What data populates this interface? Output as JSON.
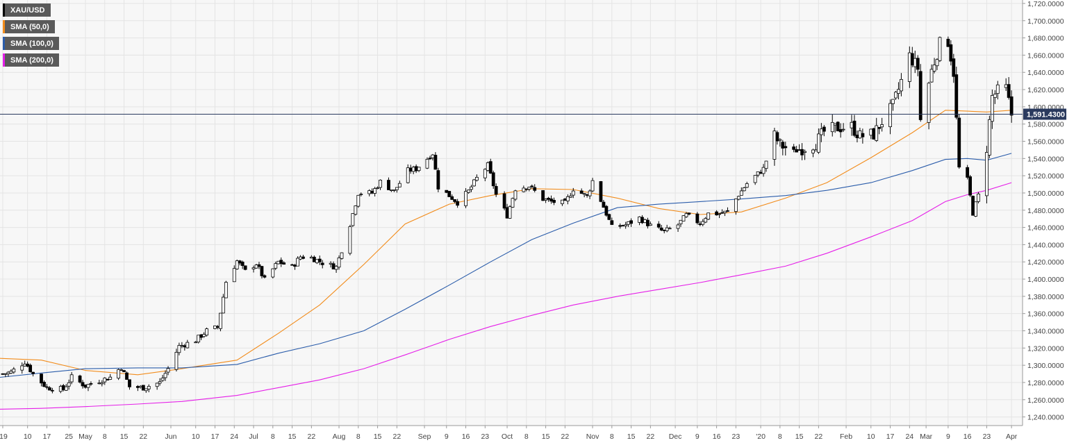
{
  "symbol": "XAU/USD",
  "colors": {
    "background": "#ffffff",
    "plot_background": "#f7f7f7",
    "grid": "#e4e4e4",
    "axis_text": "#444444",
    "candle_up": "#ffffff",
    "candle_down": "#000000",
    "candle_outline": "#000000",
    "current_price_line": "#2a3a5e",
    "legend_bg": "#5a5a5a",
    "legend_text": "#ffffff"
  },
  "legend": [
    {
      "label": "XAU/USD",
      "color": "#000000"
    },
    {
      "label": "SMA (50,0)",
      "color": "#f28c1b"
    },
    {
      "label": "SMA (100,0)",
      "color": "#2a5caa"
    },
    {
      "label": "SMA (200,0)",
      "color": "#e51ee8"
    }
  ],
  "current_price": {
    "label": "1,591.4300",
    "value": 1591.43
  },
  "chart_data": {
    "type": "candlestick",
    "title": "",
    "xlabel": "",
    "ylabel": "",
    "ylim": [
      1230,
      1724
    ],
    "y_ticks": [
      "1,240.0000",
      "1,260.0000",
      "1,280.0000",
      "1,300.0000",
      "1,320.0000",
      "1,340.0000",
      "1,360.0000",
      "1,380.0000",
      "1,400.0000",
      "1,420.0000",
      "1,440.0000",
      "1,460.0000",
      "1,480.0000",
      "1,500.0000",
      "1,520.0000",
      "1,540.0000",
      "1,560.0000",
      "1,580.0000",
      "1,600.0000",
      "1,620.0000",
      "1,640.0000",
      "1,660.0000",
      "1,680.0000",
      "1,700.0000",
      "1,720.0000"
    ],
    "y_tick_values": [
      1240,
      1260,
      1280,
      1300,
      1320,
      1340,
      1360,
      1380,
      1400,
      1420,
      1440,
      1460,
      1480,
      1500,
      1520,
      1540,
      1560,
      1580,
      1600,
      1620,
      1640,
      1660,
      1680,
      1700,
      1720
    ],
    "x_tick_labels": [
      "'19",
      "10",
      "17",
      "25",
      "May",
      "8",
      "15",
      "22",
      "Jun",
      "10",
      "17",
      "24",
      "Jul",
      "8",
      "15",
      "22",
      "Aug",
      "8",
      "15",
      "22",
      "Sep",
      "9",
      "16",
      "23",
      "Oct",
      "8",
      "15",
      "22",
      "Nov",
      "8",
      "15",
      "22",
      "Dec",
      "9",
      "16",
      "23",
      "'20",
      "8",
      "15",
      "22",
      "Feb",
      "10",
      "17",
      "24",
      "Mar",
      "9",
      "16",
      "23",
      "Apr"
    ],
    "x_tick_dates": [
      "2019-04-01",
      "2019-04-10",
      "2019-04-17",
      "2019-04-25",
      "2019-05-01",
      "2019-05-08",
      "2019-05-15",
      "2019-05-22",
      "2019-06-01",
      "2019-06-10",
      "2019-06-17",
      "2019-06-24",
      "2019-07-01",
      "2019-07-08",
      "2019-07-15",
      "2019-07-22",
      "2019-08-01",
      "2019-08-08",
      "2019-08-15",
      "2019-08-22",
      "2019-09-01",
      "2019-09-09",
      "2019-09-16",
      "2019-09-23",
      "2019-10-01",
      "2019-10-08",
      "2019-10-15",
      "2019-10-22",
      "2019-11-01",
      "2019-11-08",
      "2019-11-15",
      "2019-11-22",
      "2019-12-01",
      "2019-12-09",
      "2019-12-16",
      "2019-12-23",
      "2020-01-01",
      "2020-01-08",
      "2020-01-15",
      "2020-01-22",
      "2020-02-01",
      "2020-02-10",
      "2020-02-17",
      "2020-02-24",
      "2020-03-01",
      "2020-03-09",
      "2020-03-16",
      "2020-03-23",
      "2020-04-01"
    ],
    "x_range": [
      "2019-03-31",
      "2020-04-05"
    ],
    "grid": true,
    "legend_position": "top-left",
    "series": [
      {
        "name": "XAU/USD",
        "type": "candlestick",
        "color": "#000000",
        "close_path": [
          [
            "2019-04-01",
            1290
          ],
          [
            "2019-04-04",
            1292
          ],
          [
            "2019-04-09",
            1304
          ],
          [
            "2019-04-12",
            1290
          ],
          [
            "2019-04-17",
            1274
          ],
          [
            "2019-04-23",
            1272
          ],
          [
            "2019-04-26",
            1286
          ],
          [
            "2019-05-01",
            1276
          ],
          [
            "2019-05-06",
            1282
          ],
          [
            "2019-05-10",
            1286
          ],
          [
            "2019-05-14",
            1298
          ],
          [
            "2019-05-17",
            1275
          ],
          [
            "2019-05-22",
            1274
          ],
          [
            "2019-05-28",
            1280
          ],
          [
            "2019-05-31",
            1296
          ],
          [
            "2019-06-04",
            1322
          ],
          [
            "2019-06-10",
            1329
          ],
          [
            "2019-06-14",
            1340
          ],
          [
            "2019-06-18",
            1344
          ],
          [
            "2019-06-21",
            1397
          ],
          [
            "2019-06-25",
            1421
          ],
          [
            "2019-06-28",
            1409
          ],
          [
            "2019-07-02",
            1418
          ],
          [
            "2019-07-05",
            1399
          ],
          [
            "2019-07-10",
            1420
          ],
          [
            "2019-07-15",
            1414
          ],
          [
            "2019-07-18",
            1426
          ],
          [
            "2019-07-22",
            1425
          ],
          [
            "2019-07-26",
            1419
          ],
          [
            "2019-07-31",
            1414
          ],
          [
            "2019-08-05",
            1464
          ],
          [
            "2019-08-08",
            1500
          ],
          [
            "2019-08-13",
            1500
          ],
          [
            "2019-08-16",
            1513
          ],
          [
            "2019-08-21",
            1502
          ],
          [
            "2019-08-26",
            1526
          ],
          [
            "2019-08-29",
            1528
          ],
          [
            "2019-09-04",
            1546
          ],
          [
            "2019-09-06",
            1507
          ],
          [
            "2019-09-10",
            1497
          ],
          [
            "2019-09-13",
            1489
          ],
          [
            "2019-09-17",
            1502
          ],
          [
            "2019-09-20",
            1517
          ],
          [
            "2019-09-24",
            1532
          ],
          [
            "2019-09-27",
            1498
          ],
          [
            "2019-10-01",
            1474
          ],
          [
            "2019-10-04",
            1505
          ],
          [
            "2019-10-09",
            1508
          ],
          [
            "2019-10-14",
            1493
          ],
          [
            "2019-10-17",
            1490
          ],
          [
            "2019-10-22",
            1488
          ],
          [
            "2019-10-25",
            1505
          ],
          [
            "2019-10-30",
            1496
          ],
          [
            "2019-11-01",
            1514
          ],
          [
            "2019-11-05",
            1484
          ],
          [
            "2019-11-08",
            1460
          ],
          [
            "2019-11-13",
            1463
          ],
          [
            "2019-11-18",
            1471
          ],
          [
            "2019-11-22",
            1462
          ],
          [
            "2019-11-27",
            1455
          ],
          [
            "2019-12-02",
            1463
          ],
          [
            "2019-12-05",
            1474
          ],
          [
            "2019-12-10",
            1465
          ],
          [
            "2019-12-13",
            1476
          ],
          [
            "2019-12-17",
            1476
          ],
          [
            "2019-12-20",
            1478
          ],
          [
            "2019-12-24",
            1498
          ],
          [
            "2019-12-27",
            1511
          ],
          [
            "2020-01-02",
            1528
          ],
          [
            "2020-01-06",
            1566
          ],
          [
            "2020-01-08",
            1556
          ],
          [
            "2020-01-13",
            1548
          ],
          [
            "2020-01-16",
            1552
          ],
          [
            "2020-01-21",
            1558
          ],
          [
            "2020-01-24",
            1571
          ],
          [
            "2020-01-29",
            1576
          ],
          [
            "2020-02-03",
            1577
          ],
          [
            "2020-02-06",
            1566
          ],
          [
            "2020-02-11",
            1568
          ],
          [
            "2020-02-14",
            1583
          ],
          [
            "2020-02-18",
            1601
          ],
          [
            "2020-02-20",
            1620
          ],
          [
            "2020-02-24",
            1659
          ],
          [
            "2020-02-27",
            1645
          ],
          [
            "2020-02-28",
            1585
          ],
          [
            "2020-03-03",
            1642
          ],
          [
            "2020-03-06",
            1673
          ],
          [
            "2020-03-09",
            1676
          ],
          [
            "2020-03-11",
            1640
          ],
          [
            "2020-03-13",
            1529
          ],
          [
            "2020-03-16",
            1515
          ],
          [
            "2020-03-18",
            1477
          ],
          [
            "2020-03-20",
            1497
          ],
          [
            "2020-03-23",
            1553
          ],
          [
            "2020-03-25",
            1612
          ],
          [
            "2020-03-27",
            1618
          ],
          [
            "2020-03-30",
            1621
          ],
          [
            "2020-04-01",
            1591
          ]
        ]
      },
      {
        "name": "SMA (50,0)",
        "type": "line",
        "color": "#f28c1b",
        "points": [
          [
            "2019-03-31",
            1308
          ],
          [
            "2019-04-15",
            1306
          ],
          [
            "2019-05-01",
            1294
          ],
          [
            "2019-05-20",
            1289
          ],
          [
            "2019-06-05",
            1296
          ],
          [
            "2019-06-25",
            1306
          ],
          [
            "2019-07-10",
            1337
          ],
          [
            "2019-07-25",
            1370
          ],
          [
            "2019-08-10",
            1417
          ],
          [
            "2019-08-25",
            1464
          ],
          [
            "2019-09-10",
            1487
          ],
          [
            "2019-09-25",
            1497
          ],
          [
            "2019-10-10",
            1505
          ],
          [
            "2019-10-25",
            1504
          ],
          [
            "2019-11-10",
            1494
          ],
          [
            "2019-11-25",
            1482
          ],
          [
            "2019-12-10",
            1475
          ],
          [
            "2019-12-25",
            1478
          ],
          [
            "2020-01-10",
            1494
          ],
          [
            "2020-01-25",
            1512
          ],
          [
            "2020-02-10",
            1541
          ],
          [
            "2020-02-25",
            1570
          ],
          [
            "2020-03-08",
            1596
          ],
          [
            "2020-03-16",
            1595
          ],
          [
            "2020-03-23",
            1594
          ],
          [
            "2020-04-01",
            1596
          ]
        ]
      },
      {
        "name": "SMA (100,0)",
        "type": "line",
        "color": "#2a5caa",
        "points": [
          [
            "2019-03-31",
            1286
          ],
          [
            "2019-04-15",
            1291
          ],
          [
            "2019-05-01",
            1296
          ],
          [
            "2019-05-20",
            1297
          ],
          [
            "2019-06-05",
            1297
          ],
          [
            "2019-06-25",
            1301
          ],
          [
            "2019-07-10",
            1314
          ],
          [
            "2019-07-25",
            1325
          ],
          [
            "2019-08-10",
            1340
          ],
          [
            "2019-08-25",
            1365
          ],
          [
            "2019-09-10",
            1393
          ],
          [
            "2019-09-25",
            1420
          ],
          [
            "2019-10-10",
            1446
          ],
          [
            "2019-10-25",
            1465
          ],
          [
            "2019-11-10",
            1483
          ],
          [
            "2019-11-25",
            1487
          ],
          [
            "2019-12-10",
            1490
          ],
          [
            "2019-12-25",
            1493
          ],
          [
            "2020-01-10",
            1497
          ],
          [
            "2020-01-25",
            1503
          ],
          [
            "2020-02-10",
            1512
          ],
          [
            "2020-02-25",
            1526
          ],
          [
            "2020-03-08",
            1539
          ],
          [
            "2020-03-16",
            1540
          ],
          [
            "2020-03-23",
            1538
          ],
          [
            "2020-04-01",
            1546
          ]
        ]
      },
      {
        "name": "SMA (200,0)",
        "type": "line",
        "color": "#e51ee8",
        "points": [
          [
            "2019-03-31",
            1249
          ],
          [
            "2019-04-15",
            1250
          ],
          [
            "2019-05-01",
            1252
          ],
          [
            "2019-05-20",
            1255
          ],
          [
            "2019-06-05",
            1258
          ],
          [
            "2019-06-25",
            1265
          ],
          [
            "2019-07-10",
            1274
          ],
          [
            "2019-07-25",
            1283
          ],
          [
            "2019-08-10",
            1296
          ],
          [
            "2019-08-25",
            1312
          ],
          [
            "2019-09-10",
            1330
          ],
          [
            "2019-09-25",
            1345
          ],
          [
            "2019-10-10",
            1358
          ],
          [
            "2019-10-25",
            1370
          ],
          [
            "2019-11-10",
            1380
          ],
          [
            "2019-11-25",
            1388
          ],
          [
            "2019-12-10",
            1396
          ],
          [
            "2019-12-25",
            1405
          ],
          [
            "2020-01-10",
            1415
          ],
          [
            "2020-01-25",
            1430
          ],
          [
            "2020-02-10",
            1449
          ],
          [
            "2020-02-25",
            1468
          ],
          [
            "2020-03-08",
            1490
          ],
          [
            "2020-03-16",
            1498
          ],
          [
            "2020-03-23",
            1503
          ],
          [
            "2020-04-01",
            1512
          ]
        ]
      }
    ]
  }
}
